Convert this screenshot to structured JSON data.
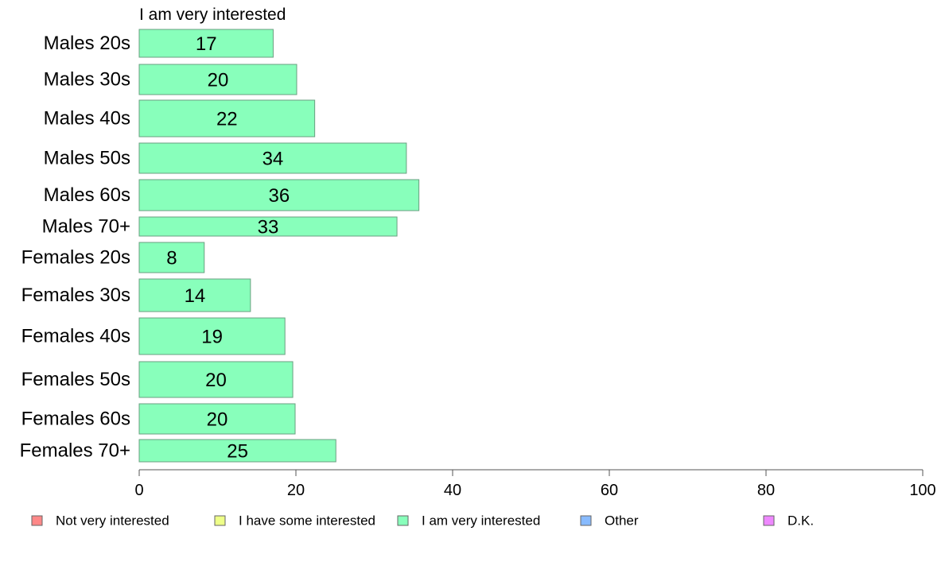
{
  "chart_data": {
    "type": "bar",
    "orientation": "horizontal",
    "title": "I am very interested",
    "categories": [
      "Males 20s",
      "Males 30s",
      "Males 40s",
      "Males 50s",
      "Males 60s",
      "Males 70+",
      "Females 20s",
      "Females 30s",
      "Females 40s",
      "Females 50s",
      "Females 60s",
      "Females 70+"
    ],
    "values": [
      17,
      20,
      22,
      34,
      36,
      33,
      8,
      14,
      19,
      20,
      20,
      25
    ],
    "exact_values": [
      17.1,
      20.1,
      22.4,
      34.1,
      35.7,
      32.9,
      8.3,
      14.2,
      18.6,
      19.6,
      19.9,
      25.1
    ],
    "xlim": [
      0,
      100
    ],
    "xticks": [
      0,
      20,
      40,
      60,
      80,
      100
    ],
    "bar_color": "#88ffbb",
    "bar_stroke": "#6a9f80",
    "grid": false,
    "legend_position": "bottom",
    "legend": [
      {
        "label": "Not very interested",
        "color": "#ff8888"
      },
      {
        "label": "I have some interested",
        "color": "#eeff88"
      },
      {
        "label": "I am very interested",
        "color": "#88ffbb"
      },
      {
        "label": "Other",
        "color": "#88bbff"
      },
      {
        "label": "D.K.",
        "color": "#ee88ff"
      }
    ]
  }
}
